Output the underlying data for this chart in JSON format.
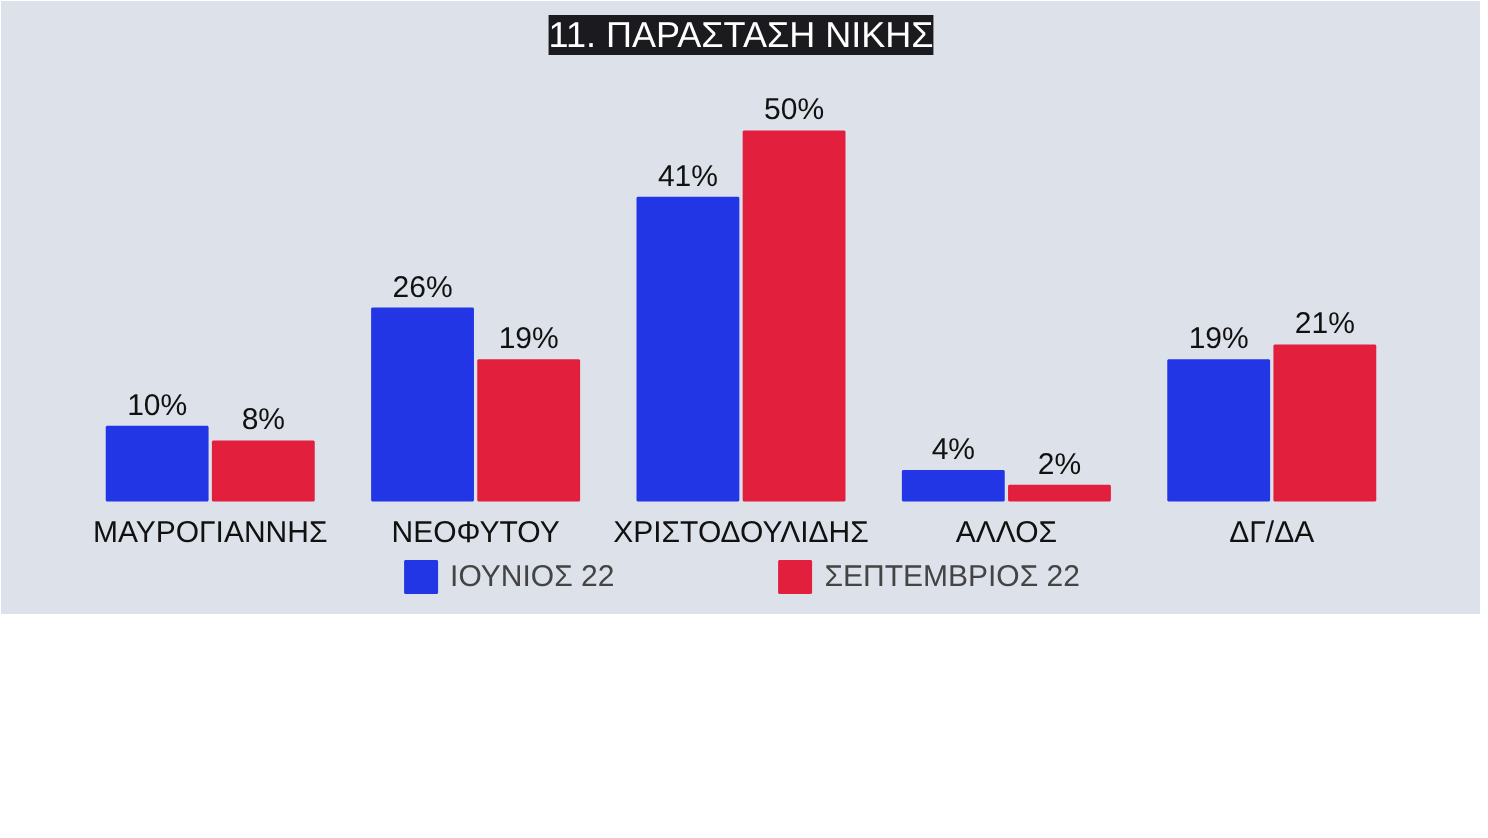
{
  "chart_data": {
    "type": "bar",
    "title": "11. ΠΑΡΑΣΤΑΣΗ ΝΙΚΗΣ",
    "categories": [
      "ΜΑΥΡΟΓΙΑΝΝΗΣ",
      "ΝΕΟΦΥΤΟΥ",
      "ΧΡΙΣΤΟΔΟΥΛΙΔΗΣ",
      "ΑΛΛΟΣ",
      "ΔΓ/ΔΑ"
    ],
    "series": [
      {
        "name": "ΙΟΥΝΙΟΣ 22",
        "color": "#2336e6",
        "values": [
          10,
          26,
          41,
          4,
          19
        ],
        "value_labels": [
          "10%",
          "26%",
          "41%",
          "4%",
          "19%"
        ]
      },
      {
        "name": "ΣΕΠΤΕΜΒΡΙΟΣ 22",
        "color": "#e21f3d",
        "values": [
          8,
          19,
          50,
          2,
          21
        ],
        "value_labels": [
          "8%",
          "19%",
          "50%",
          "2%",
          "21%"
        ]
      }
    ],
    "legend": "bottom",
    "grid": false
  }
}
